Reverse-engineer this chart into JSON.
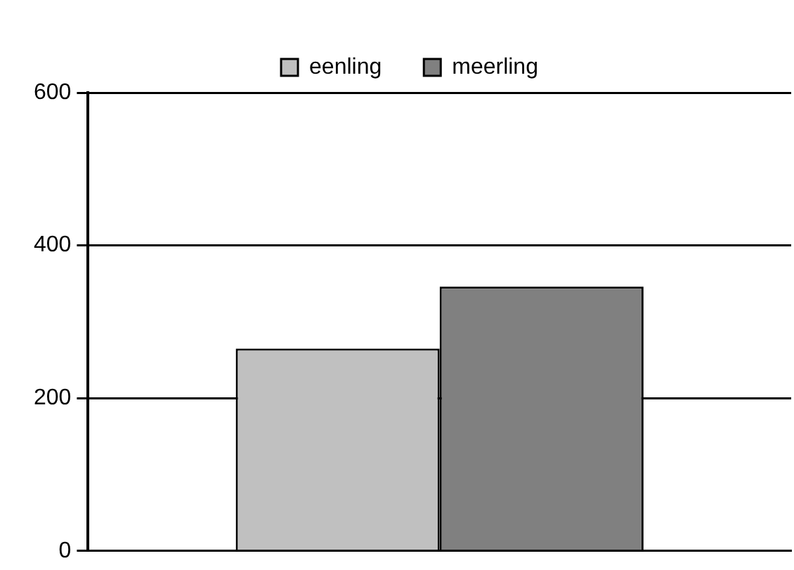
{
  "chart_data": {
    "type": "bar",
    "categories": [
      null
    ],
    "series": [
      {
        "name": "eenling",
        "color": "#c0c0c0",
        "values": [
          265
        ]
      },
      {
        "name": "meerling",
        "color": "#808080",
        "values": [
          346
        ]
      }
    ],
    "ylim": [
      0,
      600
    ],
    "yticks": [
      0,
      200,
      400,
      600
    ],
    "grid": "y",
    "legend": "top"
  }
}
